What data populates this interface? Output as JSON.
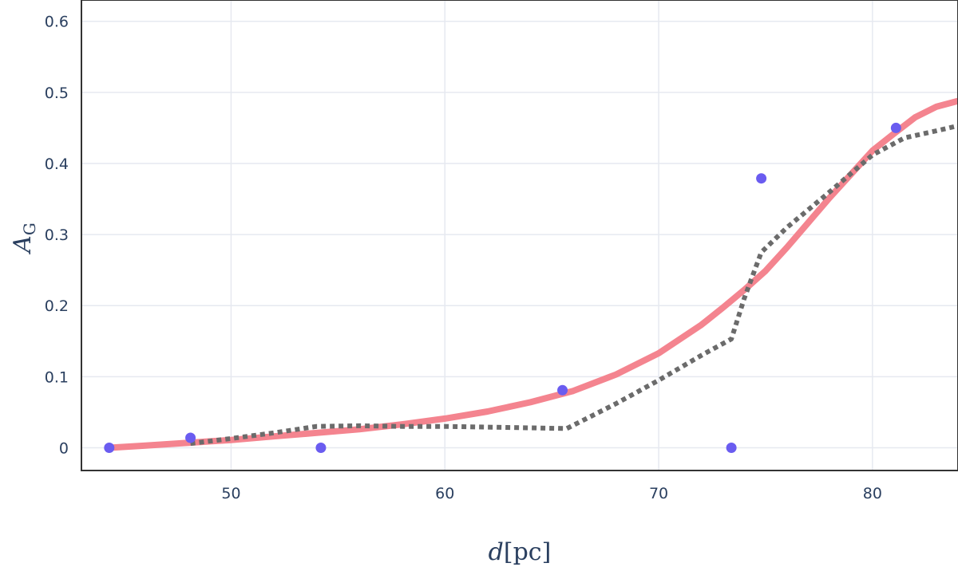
{
  "chart_data": {
    "type": "scatter",
    "xlabel_italic": "d",
    "xlabel_rest": "[pc]",
    "ylabel_main": "A",
    "ylabel_sub": "G",
    "xlim": [
      43,
      84
    ],
    "ylim": [
      -0.032,
      0.63
    ],
    "xticks": [
      50,
      60,
      70,
      80
    ],
    "yticks": [
      0,
      0.1,
      0.2,
      0.3,
      0.4,
      0.5,
      0.6
    ],
    "ytick_labels": [
      "0",
      "0.1",
      "0.2",
      "0.3",
      "0.4",
      "0.5",
      "0.6"
    ],
    "grid": true,
    "series": [
      {
        "kind": "markers",
        "color": "#6a5cf0",
        "x": [
          44.3,
          48.1,
          54.2,
          65.5,
          73.4,
          74.8,
          81.1
        ],
        "y": [
          0.0,
          0.014,
          0.0,
          0.081,
          0.0,
          0.379,
          0.45
        ]
      },
      {
        "kind": "line-solid",
        "color": "#f4848f",
        "x": [
          44.3,
          46,
          48,
          50,
          52,
          54,
          56,
          58,
          60,
          62,
          64,
          66,
          68,
          70,
          72,
          73,
          74,
          75,
          76,
          78,
          80,
          81,
          82,
          83,
          84
        ],
        "y": [
          0.0,
          0.003,
          0.007,
          0.011,
          0.016,
          0.021,
          0.026,
          0.033,
          0.041,
          0.051,
          0.064,
          0.08,
          0.103,
          0.133,
          0.173,
          0.197,
          0.222,
          0.249,
          0.282,
          0.352,
          0.418,
          0.442,
          0.465,
          0.48,
          0.488
        ]
      },
      {
        "kind": "line-dotted",
        "color": "#6b6b6b",
        "x": [
          48.1,
          50,
          52,
          54,
          56,
          58,
          60,
          62,
          64,
          65.7,
          68,
          70,
          72,
          73.4,
          74,
          74.8,
          76,
          78,
          80,
          81.5,
          83,
          84
        ],
        "y": [
          0.006,
          0.013,
          0.021,
          0.03,
          0.031,
          0.03,
          0.03,
          0.029,
          0.028,
          0.027,
          0.062,
          0.095,
          0.13,
          0.153,
          0.21,
          0.275,
          0.31,
          0.36,
          0.412,
          0.436,
          0.446,
          0.453
        ]
      }
    ]
  }
}
